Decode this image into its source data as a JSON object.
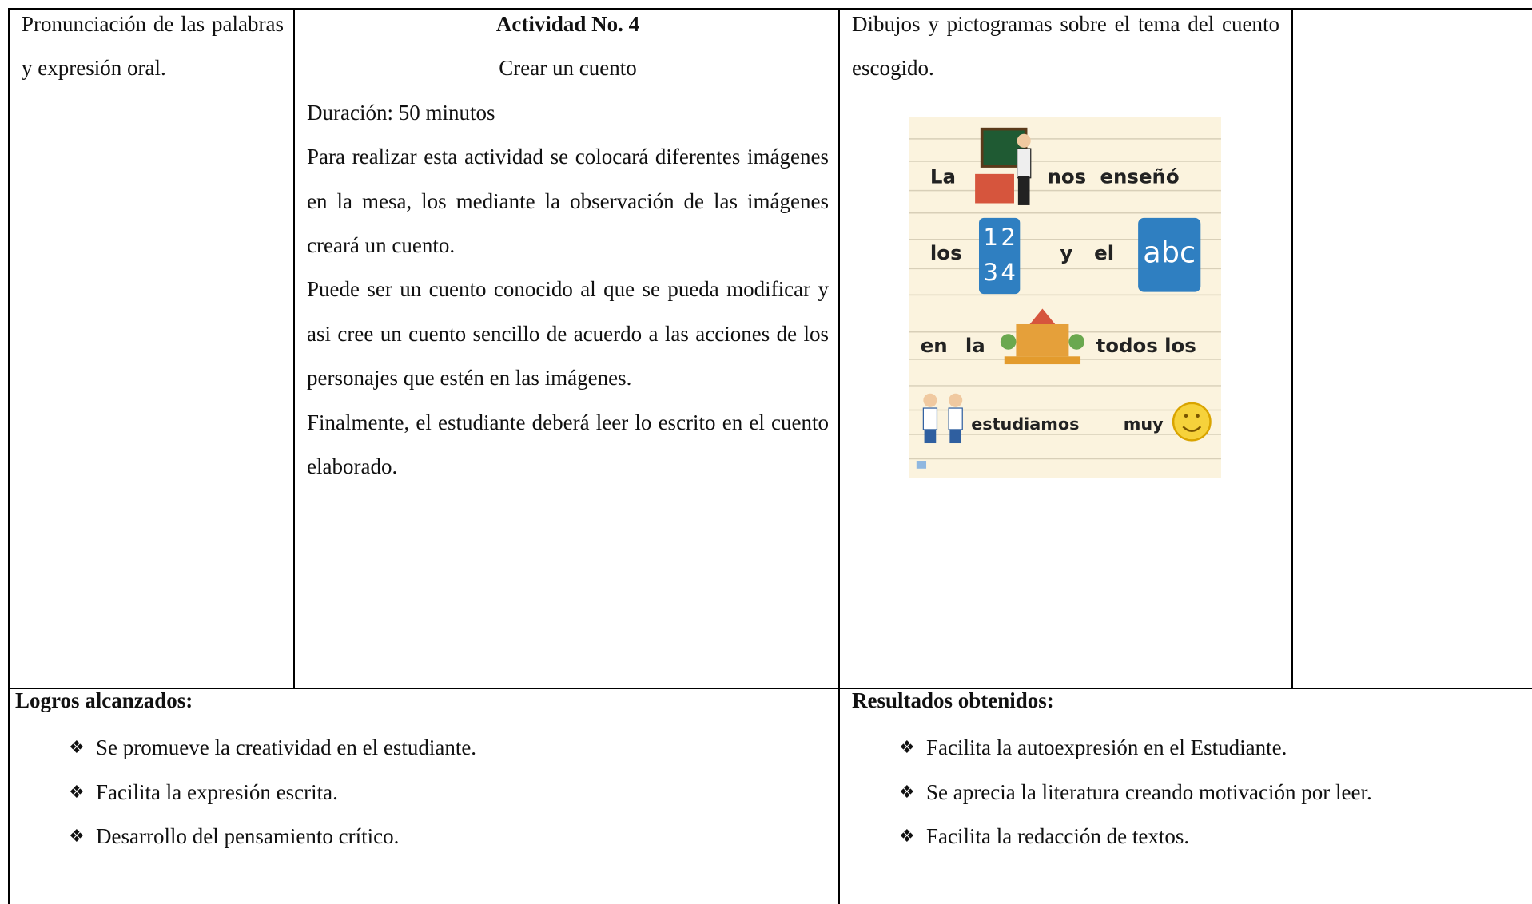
{
  "activity": {
    "skill": "Pronunciación de las palabras y expresión oral.",
    "title": "Actividad No. 4",
    "subtitle": "Crear un cuento",
    "duration": "Duración: 50 minutos",
    "paragraphs": [
      "Para realizar esta actividad se colocará diferentes imágenes en la mesa, los mediante la observación de las imágenes creará un cuento.",
      "Puede ser un cuento conocido al que se pueda modificar y asi cree un cuento sencillo de acuerdo a las acciones de los personajes que estén en las imágenes.",
      "Finalmente, el estudiante deberá leer lo escrito en el cuento elaborado."
    ],
    "resources": "Dibujos y pictogramas sobre el tema del cuento escogido.",
    "pictogram": {
      "words": [
        "La",
        "nos",
        "enseñó",
        "los",
        "y",
        "el",
        "abc",
        "en",
        "la",
        "todos",
        "los",
        "estudiamos",
        "muy"
      ],
      "numbers": [
        "1",
        "2",
        "3",
        "4"
      ]
    }
  },
  "achievements": {
    "title": "Logros alcanzados:",
    "items": [
      "Se promueve la creatividad en el estudiante.",
      "Facilita la expresión escrita.",
      "Desarrollo del pensamiento crítico."
    ]
  },
  "results": {
    "title": "Resultados obtenidos:",
    "items": [
      "Facilita la autoexpresión en el Estudiante.",
      "Se aprecia la literatura creando motivación por leer.",
      "Facilita la redacción de textos."
    ]
  }
}
